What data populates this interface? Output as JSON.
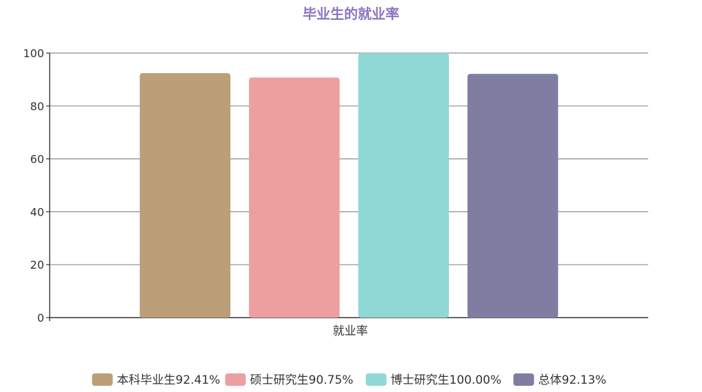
{
  "chart_data": {
    "type": "bar",
    "title": "毕业生的就业率",
    "categories": [
      "就业率"
    ],
    "series": [
      {
        "name": "本科毕业生92.41%",
        "values": [
          92.41
        ],
        "color": "#BC9E78"
      },
      {
        "name": "硕士研究生90.75%",
        "values": [
          90.75
        ],
        "color": "#EC9F9E"
      },
      {
        "name": "博士研究生100.00%",
        "values": [
          100.0
        ],
        "color": "#8FD8D5"
      },
      {
        "name": "总体92.13%",
        "values": [
          92.13
        ],
        "color": "#7F7EA2"
      }
    ],
    "ylim": [
      0,
      100
    ],
    "yticks": [
      0,
      20,
      40,
      60,
      80,
      100
    ],
    "xlabel": "",
    "ylabel": "",
    "grid": true,
    "legend_position": "bottom",
    "title_color": "#8A76C2"
  }
}
